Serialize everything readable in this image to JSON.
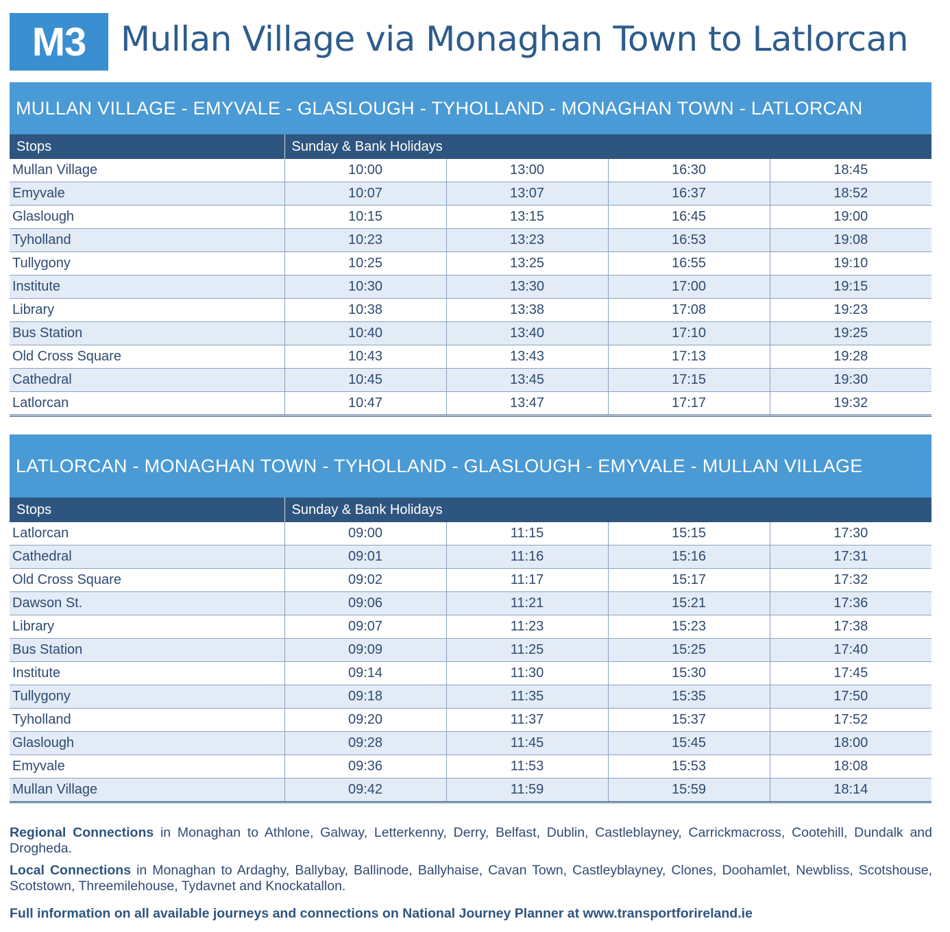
{
  "header": {
    "route_code": "M3",
    "title": "Mullan Village via Monaghan Town to Latlorcan"
  },
  "outbound": {
    "route": "MULLAN VILLAGE - EMYVALE - GLASLOUGH - TYHOLLAND - MONAGHAN TOWN - LATLORCAN",
    "stops_header": "Stops",
    "days_header": "Sunday & Bank Holidays",
    "rows": [
      {
        "stop": "Mullan Village",
        "times": [
          "10:00",
          "13:00",
          "16:30",
          "18:45"
        ]
      },
      {
        "stop": "Emyvale",
        "times": [
          "10:07",
          "13:07",
          "16:37",
          "18:52"
        ]
      },
      {
        "stop": "Glaslough",
        "times": [
          "10:15",
          "13:15",
          "16:45",
          "19:00"
        ]
      },
      {
        "stop": "Tyholland",
        "times": [
          "10:23",
          "13:23",
          "16:53",
          "19:08"
        ]
      },
      {
        "stop": "Tullygony",
        "times": [
          "10:25",
          "13:25",
          "16:55",
          "19:10"
        ]
      },
      {
        "stop": "Institute",
        "times": [
          "10:30",
          "13:30",
          "17:00",
          "19:15"
        ]
      },
      {
        "stop": "Library",
        "times": [
          "10:38",
          "13:38",
          "17:08",
          "19:23"
        ]
      },
      {
        "stop": "Bus Station",
        "times": [
          "10:40",
          "13:40",
          "17:10",
          "19:25"
        ]
      },
      {
        "stop": "Old Cross Square",
        "times": [
          "10:43",
          "13:43",
          "17:13",
          "19:28"
        ]
      },
      {
        "stop": "Cathedral",
        "times": [
          "10:45",
          "13:45",
          "17:15",
          "19:30"
        ]
      },
      {
        "stop": "Latlorcan",
        "times": [
          "10:47",
          "13:47",
          "17:17",
          "19:32"
        ]
      }
    ]
  },
  "inbound": {
    "route": "LATLORCAN - MONAGHAN TOWN - TYHOLLAND - GLASLOUGH - EMYVALE - MULLAN VILLAGE",
    "stops_header": "Stops",
    "days_header": "Sunday & Bank Holidays",
    "rows": [
      {
        "stop": "Latlorcan",
        "times": [
          "09:00",
          "11:15",
          "15:15",
          "17:30"
        ]
      },
      {
        "stop": "Cathedral",
        "times": [
          "09:01",
          "11:16",
          "15:16",
          "17:31"
        ]
      },
      {
        "stop": "Old Cross Square",
        "times": [
          "09:02",
          "11:17",
          "15:17",
          "17:32"
        ]
      },
      {
        "stop": "Dawson St.",
        "times": [
          "09:06",
          "11:21",
          "15:21",
          "17:36"
        ]
      },
      {
        "stop": "Library",
        "times": [
          "09:07",
          "11:23",
          "15:23",
          "17:38"
        ]
      },
      {
        "stop": "Bus Station",
        "times": [
          "09:09",
          "11:25",
          "15:25",
          "17:40"
        ]
      },
      {
        "stop": "Institute",
        "times": [
          "09:14",
          "11:30",
          "15:30",
          "17:45"
        ]
      },
      {
        "stop": "Tullygony",
        "times": [
          "09:18",
          "11:35",
          "15:35",
          "17:50"
        ]
      },
      {
        "stop": "Tyholland",
        "times": [
          "09:20",
          "11:37",
          "15:37",
          "17:52"
        ]
      },
      {
        "stop": "Glaslough",
        "times": [
          "09:28",
          "11:45",
          "15:45",
          "18:00"
        ]
      },
      {
        "stop": "Emyvale",
        "times": [
          "09:36",
          "11:53",
          "15:53",
          "18:08"
        ]
      },
      {
        "stop": "Mullan Village",
        "times": [
          "09:42",
          "11:59",
          "15:59",
          "18:14"
        ]
      }
    ]
  },
  "notes": {
    "regional_label": "Regional Connections",
    "regional_text": " in Monaghan to Athlone, Galway, Letterkenny, Derry, Belfast, Dublin, Castleblayney, Carrickmacross, Cootehill, Dundalk and Drogheda.",
    "local_label": "Local Connections",
    "local_text": " in Monaghan to Ardaghy, Ballybay, Ballinode, Ballyhaise, Cavan Town, Castleyblayney, Clones, Doohamlet, Newbliss, Scotshouse, Scotstown, Threemilehouse, Tydavnet and Knockatallon.",
    "full_info": "Full information on all available journeys and connections on National Journey Planner at www.transportforireland.ie"
  }
}
